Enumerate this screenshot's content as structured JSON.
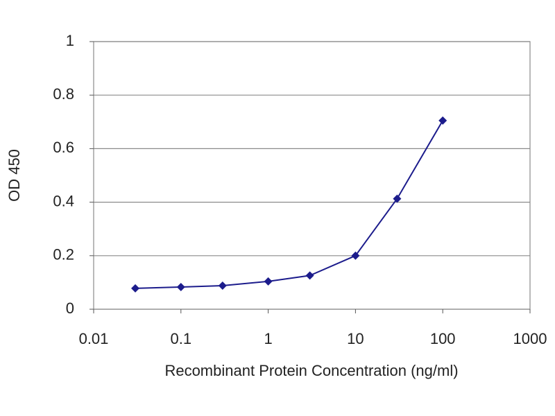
{
  "chart_data": {
    "type": "line",
    "x_label": "Recombinant Protein Concentration (ng/ml)",
    "y_label": "OD 450",
    "x": [
      0.03,
      0.1,
      0.3,
      1,
      3,
      10,
      30,
      100
    ],
    "values": [
      0.078,
      0.083,
      0.088,
      0.104,
      0.126,
      0.2,
      0.413,
      0.705
    ],
    "color": "#1c1c8c",
    "xscale": "log",
    "xlim": [
      0.01,
      1000
    ],
    "xticks": [
      0.01,
      0.1,
      1,
      10,
      100,
      1000
    ],
    "ylim": [
      0,
      1
    ],
    "yticks": [
      0,
      0.2,
      0.4,
      0.6,
      0.8,
      1
    ],
    "grid": true
  }
}
